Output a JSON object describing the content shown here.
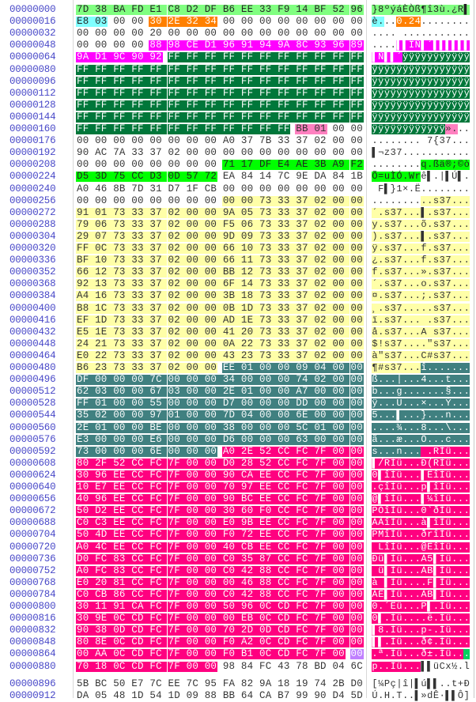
{
  "editor": {
    "bytes_per_row": 16,
    "rows": [
      {
        "offset": "00000000",
        "hex": "7D 38 BA FD E1 C8 D2 DF B6 EE 33 F9 14 BF 52 96"
      },
      {
        "offset": "00000016",
        "hex": "E8 03 00 00 30 2E 32 34 00 00 00 00 00 00 00 00"
      },
      {
        "offset": "00000032",
        "hex": "00 00 00 00 20 00 00 00 00 00 00 00 00 00 00 00"
      },
      {
        "offset": "00000048",
        "hex": "00 00 00 00 88 98 CE D1 96 91 94 9A 8C 93 96 89"
      },
      {
        "offset": "00000064",
        "hex": "9A D1 9C 90 92 FF FF FF FF FF FF FF FF FF FF FF"
      },
      {
        "offset": "00000080",
        "hex": "FF FF FF FF FF FF FF FF FF FF FF FF FF FF FF FF"
      },
      {
        "offset": "00000096",
        "hex": "FF FF FF FF FF FF FF FF FF FF FF FF FF FF FF FF"
      },
      {
        "offset": "00000112",
        "hex": "FF FF FF FF FF FF FF FF FF FF FF FF FF FF FF FF"
      },
      {
        "offset": "00000128",
        "hex": "FF FF FF FF FF FF FF FF FF FF FF FF FF FF FF FF"
      },
      {
        "offset": "00000144",
        "hex": "FF FF FF FF FF FF FF FF FF FF FF FF FF FF FF FF"
      },
      {
        "offset": "00000160",
        "hex": "FF FF FF FF FF FF FF FF FF FF FF FF BB 01 00 00"
      },
      {
        "offset": "00000176",
        "hex": "00 00 00 00 00 00 00 00 A0 37 7B 33 37 02 00 00"
      },
      {
        "offset": "00000192",
        "hex": "90 AC 7A 33 37 02 00 00 00 00 00 00 00 00 00 00"
      },
      {
        "offset": "00000208",
        "hex": "00 00 00 00 00 00 00 00 71 17 DF E4 AE 3B A9 F2"
      },
      {
        "offset": "00000224",
        "hex": "D5 3D 75 CC D3 0D 57 72 EA 84 14 7C 9E DA 84 1B"
      },
      {
        "offset": "00000240",
        "hex": "A0 46 8B 7D 31 D7 1F CB 00 00 00 00 00 00 00 00"
      },
      {
        "offset": "00000256",
        "hex": "00 00 00 00 00 00 00 00 00 00 73 33 37 02 00 00"
      },
      {
        "offset": "00000272",
        "hex": "91 01 73 33 37 02 00 00 9A 05 73 33 37 02 00 00"
      },
      {
        "offset": "00000288",
        "hex": "79 06 73 33 37 02 00 00 F5 06 73 33 37 02 00 00"
      },
      {
        "offset": "00000304",
        "hex": "29 07 73 33 37 02 00 00 9D 09 73 33 37 02 00 00"
      },
      {
        "offset": "00000320",
        "hex": "FF 0C 73 33 37 02 00 00 66 10 73 33 37 02 00 00"
      },
      {
        "offset": "00000336",
        "hex": "BF 10 73 33 37 02 00 00 66 11 73 33 37 02 00 00"
      },
      {
        "offset": "00000352",
        "hex": "66 12 73 33 37 02 00 00 BB 12 73 33 37 02 00 00"
      },
      {
        "offset": "00000368",
        "hex": "92 13 73 33 37 02 00 00 6F 14 73 33 37 02 00 00"
      },
      {
        "offset": "00000384",
        "hex": "A4 16 73 33 37 02 00 00 3B 18 73 33 37 02 00 00"
      },
      {
        "offset": "00000400",
        "hex": "B8 1C 73 33 37 02 00 00 0B 1D 73 33 37 02 00 00"
      },
      {
        "offset": "00000416",
        "hex": "EF 1D 73 33 37 02 00 00 AD 1E 73 33 37 02 00 00"
      },
      {
        "offset": "00000432",
        "hex": "E5 1E 73 33 37 02 00 00 41 20 73 33 37 02 00 00"
      },
      {
        "offset": "00000448",
        "hex": "24 21 73 33 37 02 00 00 0A 22 73 33 37 02 00 00"
      },
      {
        "offset": "00000464",
        "hex": "E0 22 73 33 37 02 00 00 43 23 73 33 37 02 00 00"
      },
      {
        "offset": "00000480",
        "hex": "B6 23 73 33 37 02 00 00 EE 01 00 00 09 04 00 00"
      },
      {
        "offset": "00000496",
        "hex": "DF 00 00 00 7C 00 00 00 34 00 00 00 74 02 00 00"
      },
      {
        "offset": "00000512",
        "hex": "62 03 00 00 67 03 00 00 2E 01 00 00 A7 00 00 00"
      },
      {
        "offset": "00000528",
        "hex": "FF 01 00 00 55 00 00 00 D7 00 00 00 DD 00 00 00"
      },
      {
        "offset": "00000544",
        "hex": "35 02 00 00 97 01 00 00 7D 04 00 00 6E 00 00 00"
      },
      {
        "offset": "00000560",
        "hex": "2E 01 00 00 BE 00 00 00 38 00 00 00 5C 01 00 00"
      },
      {
        "offset": "00000576",
        "hex": "E3 00 00 00 E6 00 00 00 D6 00 00 00 63 00 00 00"
      },
      {
        "offset": "00000592",
        "hex": "73 00 00 00 6E 00 00 00 A0 2E 52 CC FC 7F 00 00"
      },
      {
        "offset": "00000608",
        "hex": "80 2F 52 CC FC 7F 00 00 D0 28 52 CC FC 7F 00 00"
      },
      {
        "offset": "00000624",
        "hex": "30 96 EE CC FC 7F 00 00 90 CA EE CC FC 7F 00 00"
      },
      {
        "offset": "00000640",
        "hex": "10 E7 EE CC FC 7F 00 00 70 97 EE CC FC 7F 00 00"
      },
      {
        "offset": "00000656",
        "hex": "40 96 EE CC FC 7F 00 00 90 BC EE CC FC 7F 00 00"
      },
      {
        "offset": "00000672",
        "hex": "50 D2 EE CC FC 7F 00 00 30 60 F0 CC FC 7F 00 00"
      },
      {
        "offset": "00000688",
        "hex": "C0 C3 EE CC FC 7F 00 00 E0 9B EE CC FC 7F 00 00"
      },
      {
        "offset": "00000704",
        "hex": "50 4D EE CC FC 7F 00 00 F0 72 EE CC FC 7F 00 00"
      },
      {
        "offset": "00000720",
        "hex": "A0 4C EE CC FC 7F 00 00 40 CB EE CC FC 7F 00 00"
      },
      {
        "offset": "00000736",
        "hex": "D0 FC 83 CC FC 7F 00 00 C0 35 87 CC FC 7F 00 00"
      },
      {
        "offset": "00000752",
        "hex": "A0 FC 83 CC FC 7F 00 00 C0 42 88 CC FC 7F 00 00"
      },
      {
        "offset": "00000768",
        "hex": "E0 20 81 CC FC 7F 00 00 00 46 88 CC FC 7F 00 00"
      },
      {
        "offset": "00000784",
        "hex": "C0 CB 86 CC FC 7F 00 00 C0 42 88 CC FC 7F 00 00"
      },
      {
        "offset": "00000800",
        "hex": "30 11 91 CA FC 7F 00 00 50 96 0C CD FC 7F 00 00"
      },
      {
        "offset": "00000816",
        "hex": "30 9E 0C CD FC 7F 00 00 00 EB 0C CD FC 7F 00 00"
      },
      {
        "offset": "00000832",
        "hex": "90 38 0D CD FC 7F 00 00 70 2D 0D CD FC 7F 00 00"
      },
      {
        "offset": "00000848",
        "hex": "80 8E 0C CD FC 7F 00 00 F0 A2 0C CD FC 7F 00 00"
      },
      {
        "offset": "00000864",
        "hex": "00 AA 0C CD FC 7F 00 00 F0 B1 0C CD FC 7F 00 00"
      },
      {
        "offset": "00000880",
        "hex": "70 18 0C CD FC 7F 00 00 98 84 FC 43 78 BD 04 6C"
      },
      {
        "offset": "00000896",
        "hex": "5B BC 50 E7 7C EE 7C 95 FA 82 9A 18 19 74 2B D0"
      },
      {
        "offset": "00000912",
        "hex": "DA 05 48 1D 54 1D 09 88 BB 64 CA B7 99 90 D4 5D"
      }
    ],
    "highlights": [
      {
        "start": 0,
        "end": 15,
        "bg": "#80ff80",
        "fg": "#222222"
      },
      {
        "start": 16,
        "end": 17,
        "bg": "#80ffff",
        "fg": "#222222"
      },
      {
        "start": 20,
        "end": 23,
        "bg": "#ff8000",
        "fg": "#ffffff"
      },
      {
        "start": 52,
        "end": 68,
        "bg": "#ff00ff",
        "fg": "#ffffff"
      },
      {
        "start": 69,
        "end": 171,
        "bg": "#00773a",
        "fg": "#ffffff"
      },
      {
        "start": 172,
        "end": 173,
        "bg": "#ff80c0",
        "fg": "#333333"
      },
      {
        "start": 216,
        "end": 231,
        "bg": "#00ff00",
        "fg": "#222222"
      },
      {
        "start": 264,
        "end": 487,
        "bg": "#ffffa8",
        "fg": "#333333"
      },
      {
        "start": 488,
        "end": 599,
        "bg": "#408080",
        "fg": "#ffffff"
      },
      {
        "start": 600,
        "end": 887,
        "bg": "#ff0080",
        "fg": "#ffffff"
      }
    ],
    "cursor": {
      "byte": 879,
      "hex_color": "#c080ff",
      "ascii_color": "#00d060"
    },
    "offset_color": "#4848c8"
  }
}
